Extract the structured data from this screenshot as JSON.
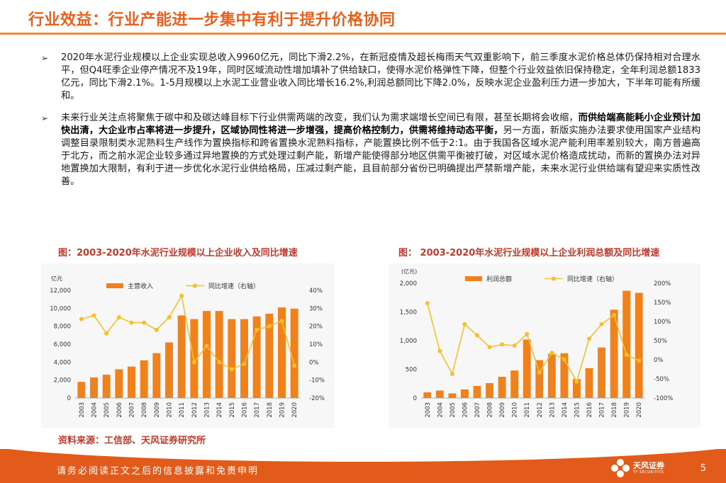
{
  "title": "行业效益：行业产能进一步集中有利于提升价格协同",
  "bullets": [
    {
      "mark": "➢",
      "segments": [
        {
          "text": "2020年水泥行业规模以上企业实现总收入9960亿元，同比下滑2.2%，在新冠疫情及超长梅雨天气双重影响下，前三季度水泥价格总体仍保持相对合理水平，但Q4旺季企业停产情况不及19年，同时区域流动性增加填补了供给缺口，使得水泥价格弹性下降，但整个行业效益依旧保持稳定，全年利润总额1833亿元，同比下滑2.1%。1-5月规模以上水泥工业营业收入同比增长16.2%,利润总额同比下降2.0%，反映水泥企业盈利压力进一步加大，下半年可能有所缓和。",
          "bold": false
        }
      ]
    },
    {
      "mark": "➢",
      "segments": [
        {
          "text": "未来行业关注点将聚焦于碳中和及碳达峰目标下行业供需两端的改变，我们认为需求端增长空间已有限，甚至长期将会收缩，",
          "bold": false
        },
        {
          "text": "而供给端高能耗小企业预计加快出清，大企业市占率将进一步提升，区域协同性将进一步增强，提高价格控制力，供需将维持动态平衡，",
          "bold": true
        },
        {
          "text": "另一方面，新版实施办法要求使用国家产业结构调整目录限制类水泥熟料生产线作为置换指标和跨省置换水泥熟料指标，产能置换比例不低于2:1。由于我国各区域水泥产能利用率差别较大，南方普遍高于北方，而之前水泥企业较多通过异地置换的方式处理过剩产能，新增产能使得部分地区供需平衡被打破，对区域水泥价格造成扰动，而新的置换办法对异地置换加大限制，有利于进一步优化水泥行业供给格局，压减过剩产能，且目前部分省份已明确提出严禁新增产能，未来水泥行业供给端有望迎来实质性改善。",
          "bold": false
        }
      ]
    }
  ],
  "figures": {
    "left_caption": "图：2003-2020年水泥行业规模以上企业收入及同比增速",
    "right_caption": "图：  2003-2020年水泥行业规模以上企业利润总额及同比增速"
  },
  "source": "资料来源：工信部、天风证券研究所",
  "footer": {
    "disclaimer": "请务必阅读正文之后的信息披露和免责申明",
    "logo_name": "天风证券",
    "logo_sub": "TF SECURITIES",
    "page_number": "5"
  },
  "colors": {
    "bar": "#f0821e",
    "line": "#f5c02b",
    "title": "#e8601c",
    "caption": "#c0392b",
    "footer": "#e35b1a"
  },
  "chart_data": [
    {
      "type": "bar",
      "unit_label": "亿元",
      "categories": [
        "2003",
        "2004",
        "2005",
        "2006",
        "2007",
        "2008",
        "2009",
        "2010",
        "2011",
        "2012",
        "2013",
        "2014",
        "2015",
        "2016",
        "2017",
        "2018",
        "2019",
        "2020"
      ],
      "series": [
        {
          "name": "主营收入",
          "type": "bar",
          "axis": "left",
          "values": [
            1800,
            2300,
            2600,
            3200,
            3500,
            4200,
            5000,
            6200,
            9200,
            8800,
            9700,
            9700,
            8800,
            8800,
            9100,
            9400,
            10100,
            9960
          ]
        },
        {
          "name": "同比增速（右轴）",
          "type": "line",
          "axis": "right",
          "values": [
            24,
            26,
            16,
            25,
            22,
            22,
            18,
            25,
            37,
            0,
            9,
            0,
            -4,
            -1,
            18,
            20,
            23,
            -2
          ]
        }
      ],
      "yleft": {
        "min": 0,
        "max": 12000,
        "ticks": [
          "0",
          "2,000",
          "4,000",
          "6,000",
          "8,000",
          "10,000",
          "12,000"
        ]
      },
      "yright": {
        "min": -20,
        "max": 40,
        "ticks": [
          "-20%",
          "-10%",
          "0%",
          "10%",
          "20%",
          "30%",
          "40%"
        ]
      },
      "legend": "top"
    },
    {
      "type": "bar",
      "unit_label": "(亿元)",
      "categories": [
        "2003",
        "2004",
        "2005",
        "2006",
        "2007",
        "2008",
        "2009",
        "2010",
        "2011",
        "2012",
        "2013",
        "2014",
        "2015",
        "2016",
        "2017",
        "2018",
        "2019",
        "2020"
      ],
      "series": [
        {
          "name": "利润总额",
          "type": "bar",
          "axis": "left",
          "values": [
            100,
            130,
            80,
            150,
            210,
            260,
            370,
            480,
            1020,
            660,
            770,
            780,
            330,
            520,
            880,
            1540,
            1870,
            1833
          ]
        },
        {
          "name": "同比增速（右轴）",
          "type": "line",
          "axis": "right",
          "values": [
            148,
            23,
            -37,
            93,
            64,
            33,
            40,
            37,
            67,
            -33,
            18,
            1,
            -57,
            55,
            93,
            117,
            13,
            -2
          ]
        }
      ],
      "yleft": {
        "min": 0,
        "max": 2000,
        "ticks": [
          "0",
          "500",
          "1,000",
          "1,500",
          "2,000"
        ]
      },
      "yright": {
        "min": -100,
        "max": 200,
        "ticks": [
          "-100%",
          "-50%",
          "0%",
          "50%",
          "100%",
          "150%",
          "200%"
        ]
      },
      "legend": "top"
    }
  ]
}
